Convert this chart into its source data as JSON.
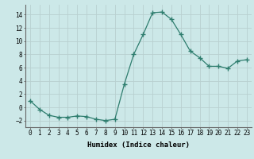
{
  "x": [
    0,
    1,
    2,
    3,
    4,
    5,
    6,
    7,
    8,
    9,
    10,
    11,
    12,
    13,
    14,
    15,
    16,
    17,
    18,
    19,
    20,
    21,
    22,
    23
  ],
  "y": [
    1,
    -0.3,
    -1.2,
    -1.5,
    -1.5,
    -1.3,
    -1.4,
    -1.8,
    -2.0,
    -1.8,
    3.5,
    8.0,
    11.0,
    14.3,
    14.4,
    13.3,
    11.0,
    8.5,
    7.5,
    6.2,
    6.2,
    5.9,
    7.0,
    7.2
  ],
  "line_color": "#2e7d6e",
  "marker": "+",
  "marker_size": 4,
  "marker_linewidth": 1.0,
  "bg_color": "#cce8e8",
  "grid_color": "#b8d0d0",
  "xlabel": "Humidex (Indice chaleur)",
  "xlim": [
    -0.5,
    23.5
  ],
  "ylim": [
    -3,
    15.5
  ],
  "yticks": [
    -2,
    0,
    2,
    4,
    6,
    8,
    10,
    12,
    14
  ],
  "xtick_labels": [
    "0",
    "1",
    "2",
    "3",
    "4",
    "5",
    "6",
    "7",
    "8",
    "9",
    "10",
    "11",
    "12",
    "13",
    "14",
    "15",
    "16",
    "17",
    "18",
    "19",
    "20",
    "21",
    "22",
    "23"
  ],
  "tick_fontsize": 5.5,
  "label_fontsize": 6.5,
  "line_width": 0.9
}
